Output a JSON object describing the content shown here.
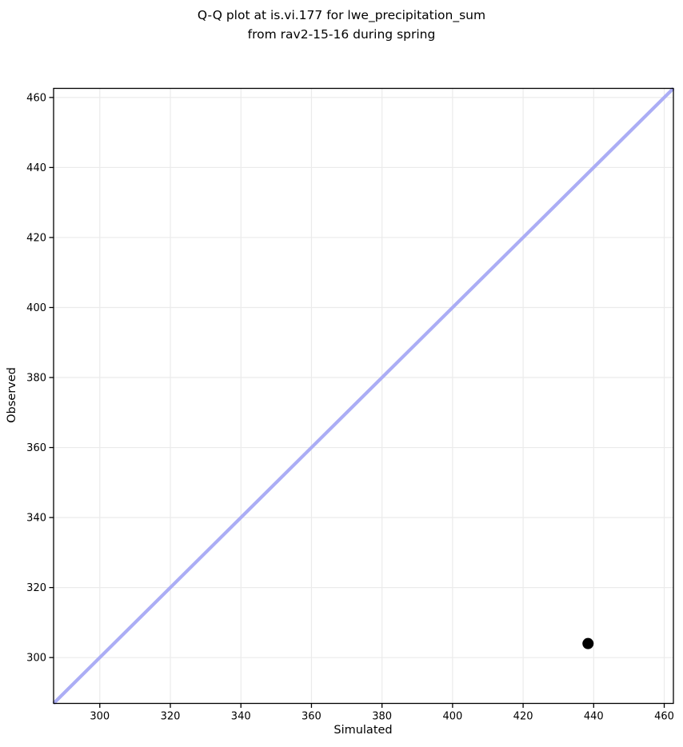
{
  "figure": {
    "title_line1": "Q-Q plot at is.vi.177 for lwe_precipitation_sum",
    "title_line2": "from rav2-15-16 during spring"
  },
  "chart_data": {
    "type": "scatter",
    "title": "Q-Q plot at is.vi.177 for lwe_precipitation_sum\nfrom rav2-15-16 during spring",
    "xlabel": "Simulated",
    "ylabel": "Observed",
    "xlim": [
      286.9,
      462.6
    ],
    "ylim": [
      286.9,
      462.6
    ],
    "xticks": [
      300,
      320,
      340,
      360,
      380,
      400,
      420,
      440,
      460
    ],
    "yticks": [
      300,
      320,
      340,
      360,
      380,
      400,
      420,
      440,
      460
    ],
    "grid": true,
    "legend": false,
    "points": [
      [
        438.4,
        304.0
      ]
    ],
    "identity_line": {
      "from": 286.9,
      "to": 462.6
    },
    "style": {
      "line_color": "#abadf5",
      "line_width": 4.2,
      "point_color": "#000000",
      "point_radius": 7,
      "grid_color": "#ebebeb",
      "spine_color": "#000000",
      "tick_label_size": 13
    }
  }
}
